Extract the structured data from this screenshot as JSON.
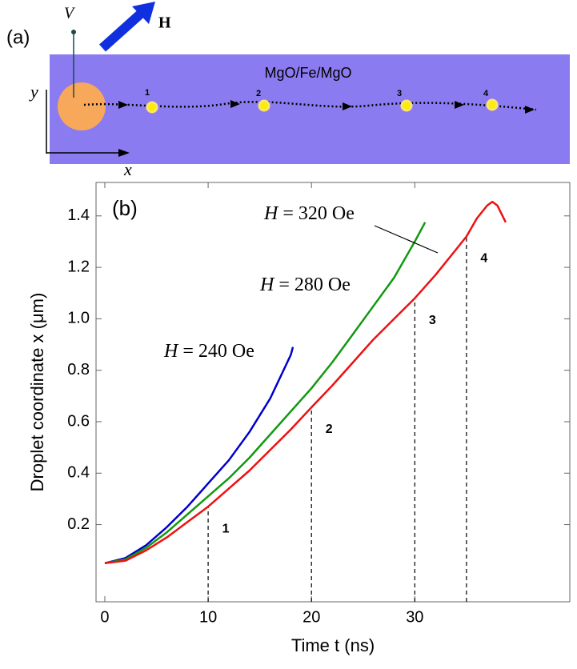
{
  "panel_a": {
    "label": "(a)",
    "voltage": "V",
    "field": "H",
    "layer": "MgO/Fe/MgO",
    "axis_y": "y",
    "axis_x": "x",
    "positions": [
      "1",
      "2",
      "3",
      "4"
    ]
  },
  "chart_data": {
    "type": "line",
    "panel_label": "(b)",
    "x_label": "Time t (ns)",
    "y_label": "Droplet coordinate x (μm)",
    "xlim": [
      -0.85,
      45
    ],
    "ylim": [
      -0.1,
      1.53
    ],
    "xticks": [
      0,
      10,
      20,
      30
    ],
    "yticks": [
      0.2,
      0.4,
      0.6,
      0.8,
      {
        "value": 1,
        "label": "1.0"
      },
      1.2,
      1.4
    ],
    "series": [
      {
        "name": "H = 240 Oe",
        "color": "#0000cc",
        "x": [
          0,
          2,
          4,
          6,
          8,
          10,
          12,
          14,
          16,
          18,
          18.2
        ],
        "values": [
          0.05,
          0.07,
          0.12,
          0.19,
          0.27,
          0.36,
          0.45,
          0.56,
          0.69,
          0.86,
          0.89
        ]
      },
      {
        "name": "H = 280 Oe",
        "color": "#119911",
        "x": [
          0,
          2,
          4,
          6,
          8,
          10,
          12,
          14,
          16,
          18,
          20,
          22,
          24,
          26,
          28,
          30,
          31
        ],
        "values": [
          0.05,
          0.065,
          0.11,
          0.17,
          0.24,
          0.31,
          0.38,
          0.46,
          0.55,
          0.64,
          0.73,
          0.83,
          0.94,
          1.05,
          1.16,
          1.3,
          1.375
        ]
      },
      {
        "name": "H = 320 Oe",
        "color": "#ee1111",
        "x": [
          0,
          2,
          4,
          6,
          8,
          10,
          12,
          14,
          16,
          18,
          20,
          22,
          24,
          26,
          28,
          30,
          32,
          34,
          35,
          36,
          37,
          37.5,
          38,
          38.8
        ],
        "values": [
          0.05,
          0.06,
          0.1,
          0.15,
          0.21,
          0.27,
          0.34,
          0.41,
          0.49,
          0.57,
          0.656,
          0.74,
          0.83,
          0.92,
          1.0,
          1.08,
          1.17,
          1.27,
          1.32,
          1.39,
          1.44,
          1.455,
          1.44,
          1.375
        ]
      }
    ],
    "markers": [
      {
        "label": "1",
        "x": 10,
        "y": 0.27
      },
      {
        "label": "2",
        "x": 20,
        "y": 0.656
      },
      {
        "label": "3",
        "x": 30,
        "y": 1.08
      },
      {
        "label": "4",
        "x": 35,
        "y": 1.32
      }
    ]
  }
}
